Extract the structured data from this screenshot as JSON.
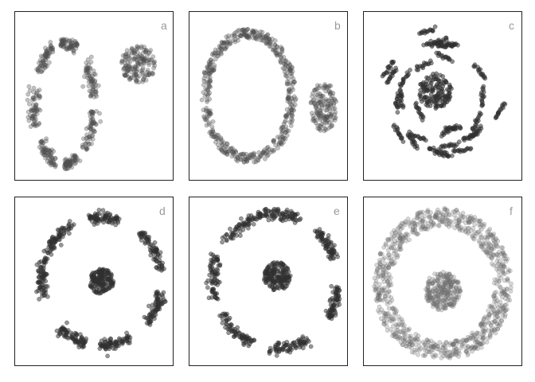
{
  "panels": [
    {
      "label": "a"
    },
    {
      "label": "b"
    },
    {
      "label": "c"
    },
    {
      "label": "d"
    },
    {
      "label": "e"
    },
    {
      "label": "f"
    }
  ],
  "chart_data": [
    {
      "type": "scatter",
      "title": "",
      "panel_label": "a",
      "axes_visible": false,
      "grid": false,
      "marker_color": "#505050",
      "marker_opacity": 0.35,
      "clusters": [
        {
          "shape": "compact-blob",
          "center": [
            0.8,
            0.3
          ],
          "radius": [
            0.12,
            0.12
          ],
          "points": 160
        },
        {
          "shape": "fragmented-arc",
          "center": [
            0.3,
            0.55
          ],
          "radius": [
            0.2,
            0.38
          ],
          "points": 460
        }
      ]
    },
    {
      "type": "scatter",
      "title": "",
      "panel_label": "b",
      "axes_visible": false,
      "grid": false,
      "marker_color": "#505050",
      "marker_opacity": 0.35,
      "clusters": [
        {
          "shape": "compact-blob",
          "center": [
            0.87,
            0.57
          ],
          "radius": [
            0.09,
            0.16
          ],
          "points": 150
        },
        {
          "shape": "ring",
          "center": [
            0.37,
            0.5
          ],
          "radius": [
            0.29,
            0.39
          ],
          "points": 500
        }
      ]
    },
    {
      "type": "scatter",
      "title": "",
      "panel_label": "c",
      "axes_visible": false,
      "grid": false,
      "marker_color": "#303030",
      "marker_opacity": 0.55,
      "clusters": [
        {
          "shape": "compact-blob",
          "center": [
            0.45,
            0.47
          ],
          "radius": [
            0.11,
            0.11
          ],
          "points": 140
        },
        {
          "shape": "short-strands",
          "center": [
            0.5,
            0.5
          ],
          "radius": [
            0.42,
            0.42
          ],
          "points": 420
        }
      ]
    },
    {
      "type": "scatter",
      "title": "",
      "panel_label": "d",
      "axes_visible": false,
      "grid": false,
      "marker_color": "#303030",
      "marker_opacity": 0.5,
      "clusters": [
        {
          "shape": "dense-core",
          "center": [
            0.55,
            0.5
          ],
          "radius": [
            0.08,
            0.08
          ],
          "points": 170
        },
        {
          "shape": "broken-ring",
          "center": [
            0.55,
            0.5
          ],
          "radius": [
            0.4,
            0.4
          ],
          "points": 520
        }
      ]
    },
    {
      "type": "scatter",
      "title": "",
      "panel_label": "e",
      "axes_visible": false,
      "grid": false,
      "marker_color": "#303030",
      "marker_opacity": 0.5,
      "clusters": [
        {
          "shape": "dense-core",
          "center": [
            0.56,
            0.47
          ],
          "radius": [
            0.09,
            0.09
          ],
          "points": 170
        },
        {
          "shape": "broken-ring",
          "center": [
            0.55,
            0.5
          ],
          "radius": [
            0.42,
            0.42
          ],
          "points": 520
        }
      ]
    },
    {
      "type": "scatter",
      "title": "",
      "panel_label": "f",
      "axes_visible": false,
      "grid": false,
      "marker_color": "#6a6a6a",
      "marker_opacity": 0.28,
      "clusters": [
        {
          "shape": "dense-core",
          "center": [
            0.5,
            0.56
          ],
          "radius": [
            0.12,
            0.12
          ],
          "points": 260
        },
        {
          "shape": "thick-ring",
          "center": [
            0.5,
            0.52
          ],
          "radius": [
            0.4,
            0.42
          ],
          "points": 900
        }
      ]
    }
  ]
}
